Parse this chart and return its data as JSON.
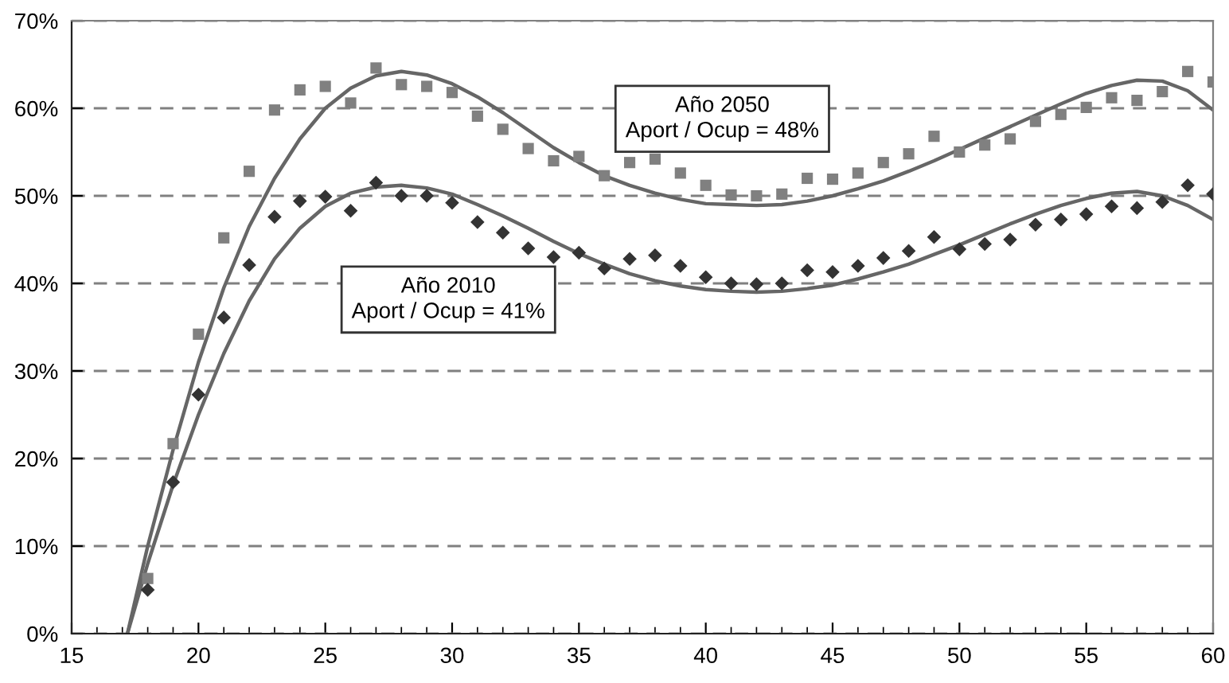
{
  "chart_data": {
    "type": "scatter",
    "xlim": [
      15,
      60
    ],
    "xticks": [
      15,
      20,
      25,
      30,
      35,
      40,
      45,
      50,
      55,
      60
    ],
    "ylim": [
      0,
      70
    ],
    "yticks": [
      {
        "value": 0,
        "label": "0%"
      },
      {
        "value": 10,
        "label": "10%"
      },
      {
        "value": 20,
        "label": "20%"
      },
      {
        "value": 30,
        "label": "30%"
      },
      {
        "value": 40,
        "label": "40%"
      },
      {
        "value": 50,
        "label": "50%"
      },
      {
        "value": 60,
        "label": "60%"
      },
      {
        "value": 70,
        "label": "70%"
      }
    ],
    "grid": "y",
    "legend": false,
    "annotations": [
      "Año 2050\nAport / Ocup = 48%",
      "Año 2010\nAport / Ocup = 41%"
    ],
    "series": [
      {
        "marker": "square",
        "color": "#808080",
        "x": [
          18,
          19,
          20,
          21,
          22,
          23,
          24,
          25,
          26,
          27,
          28,
          29,
          30,
          31,
          32,
          33,
          34,
          35,
          36,
          37,
          38,
          39,
          40,
          41,
          42,
          43,
          44,
          45,
          46,
          47,
          48,
          49,
          50,
          51,
          52,
          53,
          54,
          55,
          56,
          57,
          58,
          59,
          60
        ],
        "values": [
          6.3,
          21.7,
          34.2,
          45.2,
          52.8,
          59.8,
          62.1,
          62.5,
          60.6,
          64.6,
          62.7,
          62.5,
          61.8,
          59.1,
          57.6,
          55.4,
          54.0,
          54.5,
          52.3,
          53.8,
          54.2,
          52.6,
          51.2,
          50.1,
          50.0,
          50.2,
          52.0,
          51.9,
          52.6,
          53.8,
          54.8,
          56.8,
          55.0,
          55.8,
          56.5,
          58.5,
          59.3,
          60.1,
          61.2,
          60.9,
          61.9,
          64.2,
          63.0
        ]
      },
      {
        "marker": "diamond",
        "color": "#333333",
        "x": [
          18,
          19,
          20,
          21,
          22,
          23,
          24,
          25,
          26,
          27,
          28,
          29,
          30,
          31,
          32,
          33,
          34,
          35,
          36,
          37,
          38,
          39,
          40,
          41,
          42,
          43,
          44,
          45,
          46,
          47,
          48,
          49,
          50,
          51,
          52,
          53,
          54,
          55,
          56,
          57,
          58,
          59,
          60
        ],
        "values": [
          5.0,
          17.3,
          27.3,
          36.1,
          42.1,
          47.6,
          49.4,
          49.9,
          48.3,
          51.5,
          50.0,
          50.0,
          49.2,
          47.0,
          45.8,
          44.0,
          43.0,
          43.5,
          41.7,
          42.8,
          43.2,
          42.0,
          40.7,
          40.0,
          39.9,
          40.0,
          41.5,
          41.3,
          42.0,
          42.9,
          43.7,
          45.3,
          43.9,
          44.5,
          45.0,
          46.7,
          47.3,
          47.9,
          48.8,
          48.6,
          49.3,
          51.2,
          50.2
        ]
      },
      {
        "type": "line",
        "color": "#666666",
        "x": [
          17.2,
          18,
          19,
          20,
          21,
          22,
          23,
          24,
          25,
          26,
          27,
          28,
          29,
          30,
          31,
          32,
          33,
          34,
          35,
          36,
          37,
          38,
          39,
          40,
          41,
          42,
          43,
          44,
          45,
          46,
          47,
          48,
          49,
          50,
          51,
          52,
          53,
          54,
          55,
          56,
          57,
          58,
          59,
          60
        ],
        "values": [
          0,
          10,
          21,
          31,
          39.5,
          46.5,
          52,
          56.5,
          60,
          62.3,
          63.7,
          64.2,
          63.8,
          62.8,
          61.3,
          59.5,
          57.5,
          55.5,
          53.8,
          52.3,
          51.2,
          50.3,
          49.6,
          49.1,
          49.0,
          48.9,
          49.0,
          49.4,
          50.0,
          50.8,
          51.7,
          52.8,
          54.0,
          55.3,
          56.6,
          57.9,
          59.2,
          60.5,
          61.7,
          62.6,
          63.2,
          63.1,
          62.0,
          59.8
        ]
      },
      {
        "type": "line",
        "color": "#666666",
        "x": [
          17.2,
          18,
          19,
          20,
          21,
          22,
          23,
          24,
          25,
          26,
          27,
          28,
          29,
          30,
          31,
          32,
          33,
          34,
          35,
          36,
          37,
          38,
          39,
          40,
          41,
          42,
          43,
          44,
          45,
          46,
          47,
          48,
          49,
          50,
          51,
          52,
          53,
          54,
          55,
          56,
          57,
          58,
          59,
          60
        ],
        "values": [
          0,
          8,
          17,
          25,
          32,
          38,
          42.8,
          46.3,
          48.8,
          50.3,
          51.0,
          51.2,
          50.9,
          50.2,
          49.0,
          47.7,
          46.3,
          44.8,
          43.4,
          42.2,
          41.1,
          40.3,
          39.7,
          39.3,
          39.1,
          39.0,
          39.1,
          39.4,
          39.8,
          40.5,
          41.3,
          42.2,
          43.3,
          44.4,
          45.6,
          46.8,
          47.9,
          48.9,
          49.7,
          50.3,
          50.5,
          50.0,
          48.9,
          47.3
        ]
      }
    ]
  }
}
